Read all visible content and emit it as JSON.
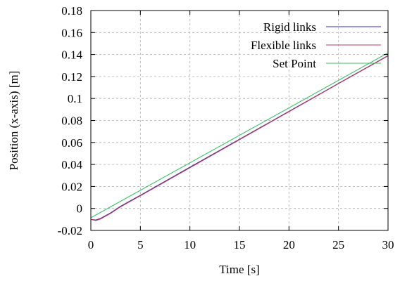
{
  "chart_data": {
    "type": "line",
    "xlabel": "Time [s]",
    "ylabel": "Position (x-axis) [m]",
    "xlim": [
      0,
      30
    ],
    "ylim": [
      -0.02,
      0.18
    ],
    "xticks": [
      0,
      5,
      10,
      15,
      20,
      25,
      30
    ],
    "yticks": [
      -0.02,
      0,
      0.02,
      0.04,
      0.06,
      0.08,
      0.1,
      0.12,
      0.14,
      0.16,
      0.18
    ],
    "xtick_labels": [
      "0",
      "5",
      "10",
      "15",
      "20",
      "25",
      "30"
    ],
    "ytick_labels": [
      "-0.02",
      "0",
      "0.02",
      "0.04",
      "0.06",
      "0.08",
      "0.1",
      "0.12",
      "0.14",
      "0.16",
      "0.18"
    ],
    "grid": true,
    "legend_position": "top-right",
    "series": [
      {
        "name": "Rigid links",
        "color": "#2f2fa8",
        "x": [
          0,
          0.5,
          1,
          1.5,
          2,
          3,
          4,
          5,
          10,
          15,
          20,
          25,
          30
        ],
        "y": [
          -0.01,
          -0.0105,
          -0.009,
          -0.0065,
          -0.004,
          0.002,
          0.007,
          0.012,
          0.0375,
          0.0629,
          0.0883,
          0.1137,
          0.139
        ]
      },
      {
        "name": "Flexible links",
        "color": "#c23a5a",
        "x": [
          0,
          0.5,
          1,
          1.5,
          2,
          3,
          4,
          5,
          10,
          15,
          20,
          25,
          30
        ],
        "y": [
          -0.01,
          -0.011,
          -0.0095,
          -0.007,
          -0.0045,
          0.0015,
          0.0065,
          0.0115,
          0.037,
          0.0625,
          0.088,
          0.1135,
          0.1388
        ]
      },
      {
        "name": "Set Point",
        "color": "#3cbf6a",
        "x": [
          0,
          30
        ],
        "y": [
          -0.0085,
          0.1415
        ]
      }
    ]
  }
}
